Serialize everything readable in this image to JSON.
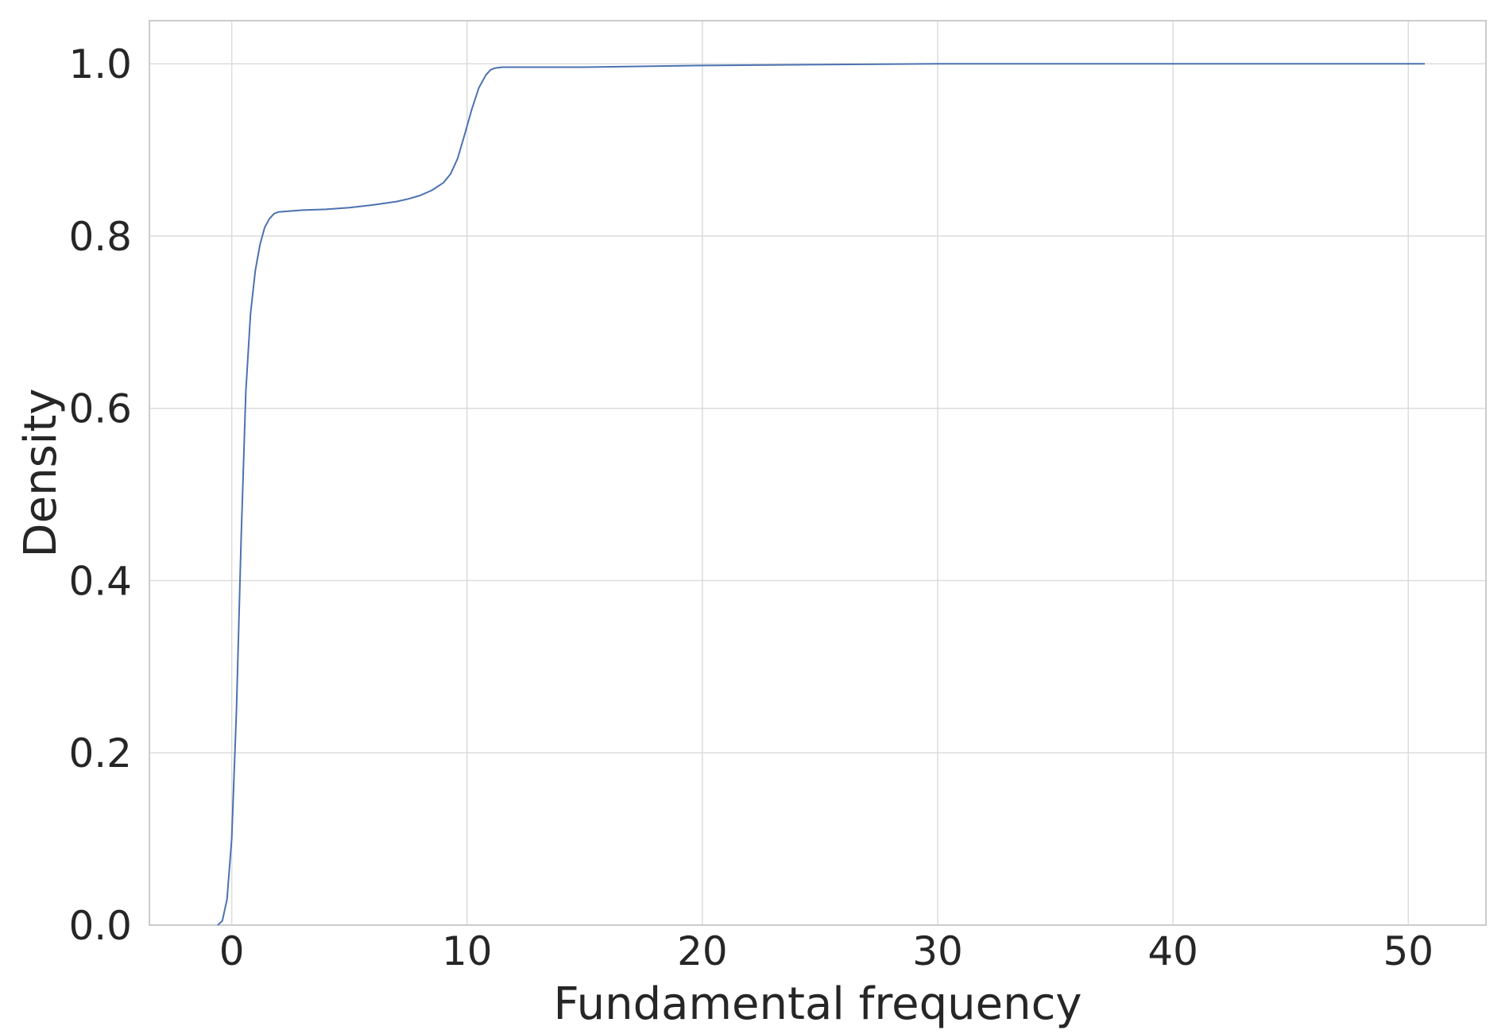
{
  "chart_data": {
    "type": "line",
    "title": "",
    "xlabel": "Fundamental frequency",
    "ylabel": "Density",
    "xlim": [
      -3.5,
      53.3
    ],
    "ylim": [
      0,
      1.05
    ],
    "xticks": [
      0,
      10,
      20,
      30,
      40,
      50
    ],
    "yticks": [
      0.0,
      0.2,
      0.4,
      0.6,
      0.8,
      1.0
    ],
    "xtick_labels": [
      "0",
      "10",
      "20",
      "30",
      "40",
      "50"
    ],
    "ytick_labels": [
      "0.0",
      "0.2",
      "0.4",
      "0.6",
      "0.8",
      "1.0"
    ],
    "grid": true,
    "series": [
      {
        "color": "#4c72b0",
        "x": [
          -0.6,
          -0.4,
          -0.2,
          0.0,
          0.2,
          0.4,
          0.6,
          0.8,
          1.0,
          1.2,
          1.4,
          1.6,
          1.8,
          2.0,
          2.5,
          3.0,
          4.0,
          5.0,
          6.0,
          7.0,
          7.5,
          8.0,
          8.5,
          9.0,
          9.3,
          9.6,
          9.9,
          10.2,
          10.5,
          10.8,
          11.0,
          11.2,
          11.5,
          12.0,
          15.0,
          20.0,
          25.0,
          30.0,
          40.0,
          50.7
        ],
        "y": [
          0.0,
          0.005,
          0.03,
          0.1,
          0.25,
          0.45,
          0.62,
          0.71,
          0.76,
          0.79,
          0.81,
          0.82,
          0.826,
          0.828,
          0.829,
          0.83,
          0.831,
          0.833,
          0.836,
          0.84,
          0.843,
          0.847,
          0.853,
          0.862,
          0.872,
          0.89,
          0.918,
          0.947,
          0.972,
          0.987,
          0.993,
          0.995,
          0.996,
          0.996,
          0.996,
          0.998,
          0.999,
          1.0,
          1.0,
          1.0
        ]
      }
    ]
  },
  "colors": {
    "line": "#4c72b0",
    "grid": "#dcdcdc",
    "frame": "#cccccc",
    "text": "#262626"
  }
}
